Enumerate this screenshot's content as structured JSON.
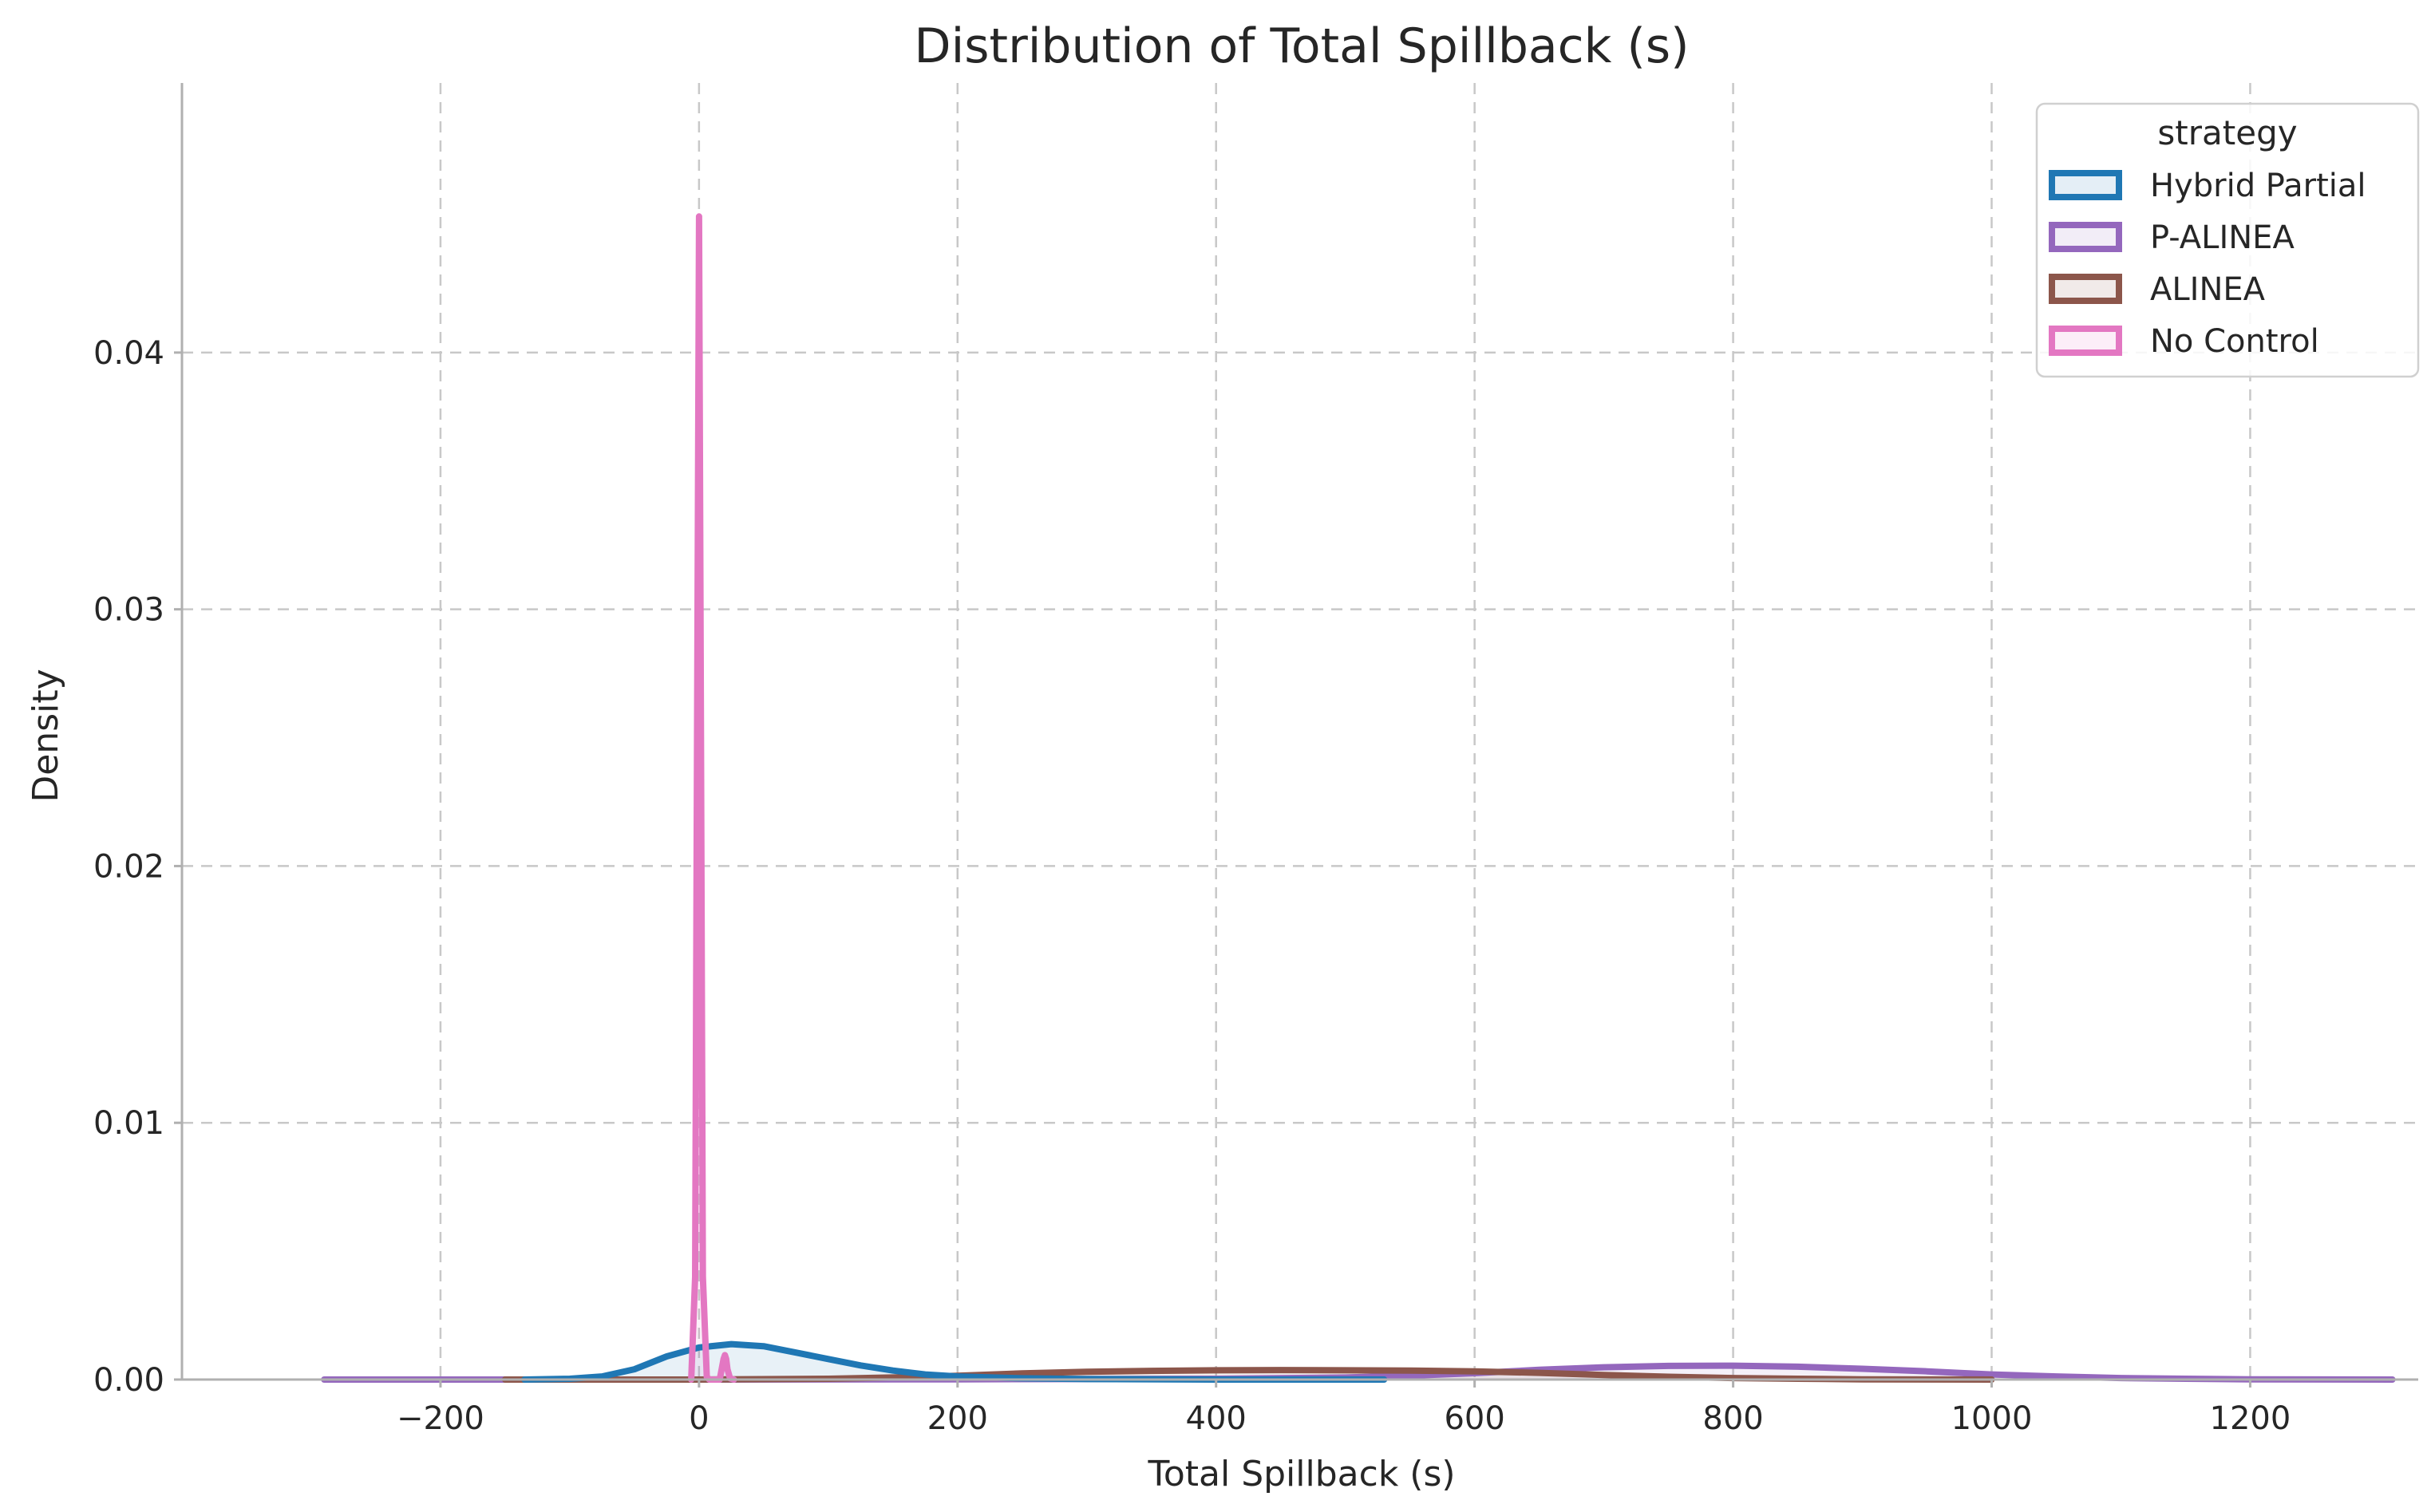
{
  "chart_data": {
    "type": "area",
    "title": "Distribution of Total Spillback (s)",
    "xlabel": "Total Spillback (s)",
    "ylabel": "Density",
    "xlim": [
      -400,
      1330
    ],
    "ylim": [
      0,
      0.0505
    ],
    "x_ticks": [
      -200,
      0,
      200,
      400,
      600,
      800,
      1000,
      1200
    ],
    "x_tick_labels": [
      "−200",
      "0",
      "200",
      "400",
      "600",
      "800",
      "1000",
      "1200"
    ],
    "y_ticks": [
      0.0,
      0.01,
      0.02,
      0.03,
      0.04
    ],
    "y_tick_labels": [
      "0.00",
      "0.01",
      "0.02",
      "0.03",
      "0.04"
    ],
    "grid": true,
    "legend": {
      "title": "strategy",
      "placement": "top-right"
    },
    "series": [
      {
        "name": "Hybrid Partial",
        "color": "#1f77b4",
        "x": [
          -135,
          -100,
          -75,
          -50,
          -25,
          0,
          25,
          50,
          75,
          100,
          125,
          150,
          175,
          200,
          250,
          300,
          400,
          530
        ],
        "y": [
          0.0,
          3e-05,
          0.00012,
          0.0004,
          0.0009,
          0.00125,
          0.00138,
          0.0013,
          0.00105,
          0.0008,
          0.00055,
          0.00035,
          0.0002,
          0.00012,
          5e-05,
          2e-05,
          0.0,
          0.0
        ]
      },
      {
        "name": "P-ALINEA",
        "color": "#9467bd",
        "x": [
          -290,
          -100,
          0,
          200,
          400,
          500,
          550,
          600,
          650,
          700,
          750,
          800,
          850,
          900,
          950,
          1000,
          1050,
          1100,
          1150,
          1200,
          1310
        ],
        "y": [
          0.0,
          0.0,
          0.0,
          1e-05,
          3e-05,
          8e-05,
          0.00015,
          0.00025,
          0.00038,
          0.00048,
          0.00053,
          0.00054,
          0.0005,
          0.00042,
          0.00032,
          0.0002,
          0.00012,
          6e-05,
          3e-05,
          1e-05,
          0.0
        ]
      },
      {
        "name": "ALINEA",
        "color": "#8c564b",
        "x": [
          -150,
          0,
          100,
          150,
          200,
          250,
          300,
          350,
          400,
          450,
          500,
          550,
          600,
          650,
          700,
          750,
          800,
          850,
          900,
          1000
        ],
        "y": [
          0.0,
          0.0,
          3e-05,
          8e-05,
          0.00015,
          0.00024,
          0.0003,
          0.00034,
          0.00036,
          0.00037,
          0.00036,
          0.00035,
          0.00032,
          0.00026,
          0.00018,
          0.00011,
          6e-05,
          3e-05,
          1e-05,
          0.0
        ]
      },
      {
        "name": "No Control",
        "color": "#e377c2",
        "x": [
          -6,
          -3,
          -1.5,
          0,
          1.5,
          3,
          6,
          8,
          12,
          16,
          19,
          20,
          21,
          22,
          24,
          27
        ],
        "y": [
          0.0,
          0.004,
          0.025,
          0.0453,
          0.025,
          0.004,
          0.0001,
          0.0,
          0.0,
          0.0,
          0.0008,
          0.00095,
          0.0008,
          0.0004,
          5e-05,
          0.0
        ]
      }
    ]
  }
}
